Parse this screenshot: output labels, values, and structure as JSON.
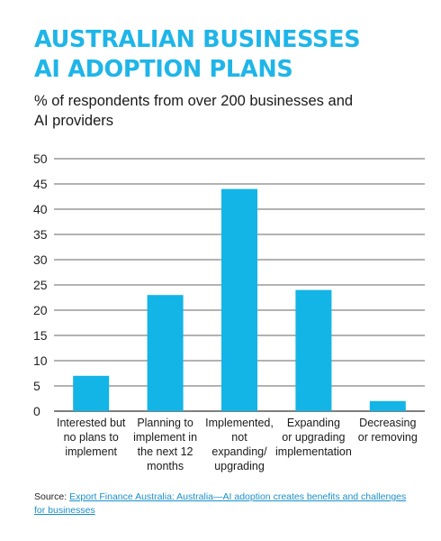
{
  "title_lines": [
    "AUSTRALIAN BUSINESSES",
    "AI ADOPTION PLANS"
  ],
  "subtitle_lines": [
    "% of respondents from over 200 businesses and",
    "AI providers"
  ],
  "source": {
    "label": "Source:",
    "link_text": "Export Finance Australia: Australia—AI adoption creates benefits and challenges for businesses"
  },
  "colors": {
    "title": "#1fb5e8",
    "bar": "#13b4e6",
    "grid": "#333333",
    "link": "#1a8fc9"
  },
  "chart_data": {
    "type": "bar",
    "title": "",
    "xlabel": "",
    "ylabel": "",
    "ylim": [
      0,
      50
    ],
    "yticks": [
      0,
      5,
      10,
      15,
      20,
      25,
      30,
      35,
      40,
      45,
      50
    ],
    "grid": true,
    "categories": [
      [
        "Interested but",
        "no plans to",
        "implement"
      ],
      [
        "Planning to",
        "implement in",
        "the next 12",
        "months"
      ],
      [
        "Implemented,",
        "not",
        "expanding/",
        "upgrading"
      ],
      [
        "Expanding",
        "or upgrading",
        "implementation"
      ],
      [
        "Decreasing",
        "or removing"
      ]
    ],
    "values": [
      7,
      23,
      44,
      24,
      2
    ]
  }
}
